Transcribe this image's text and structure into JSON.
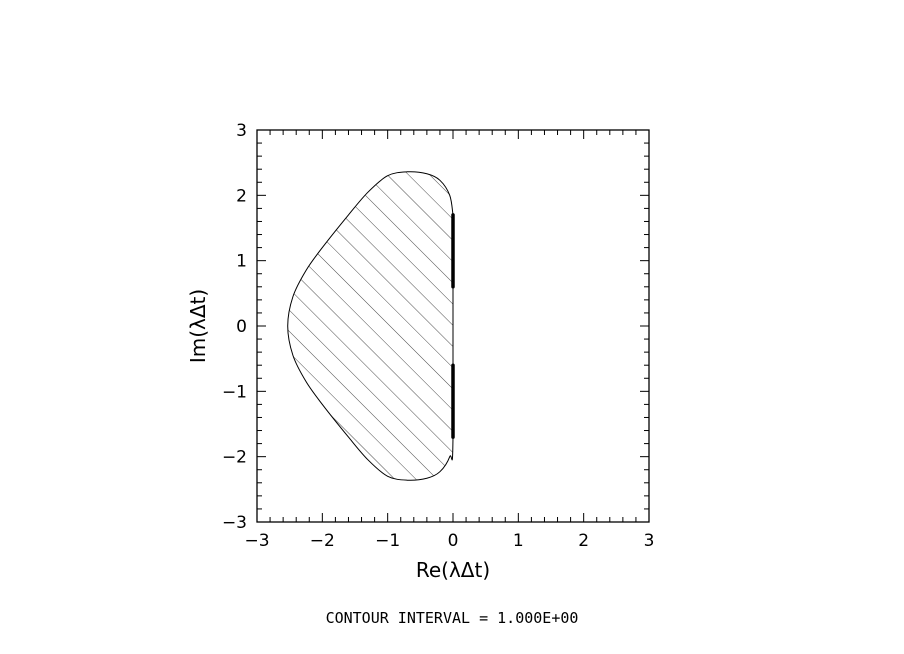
{
  "chart_data": {
    "type": "contour",
    "title": "",
    "xlabel": "Re(λΔt)",
    "ylabel": "Im(λΔt)",
    "xlim": [
      -3,
      3
    ],
    "ylim": [
      -3,
      3
    ],
    "x_ticks": [
      -3,
      -2,
      -1,
      0,
      1,
      2,
      3
    ],
    "y_ticks": [
      -3,
      -2,
      -1,
      0,
      1,
      2,
      3
    ],
    "x_tick_labels": [
      "−3",
      "−2",
      "−1",
      "0",
      "1",
      "2",
      "3"
    ],
    "y_tick_labels": [
      "−3",
      "−2",
      "−1",
      "0",
      "1",
      "2",
      "3"
    ],
    "grid": false,
    "minor_ticks_per_major": 5,
    "stability_region": {
      "fill": "hatched",
      "boundary": [
        [
          0.0,
          1.7
        ],
        [
          -0.05,
          2.0
        ],
        [
          -0.2,
          2.23
        ],
        [
          -0.4,
          2.33
        ],
        [
          -0.7,
          2.36
        ],
        [
          -1.0,
          2.3
        ],
        [
          -1.3,
          2.05
        ],
        [
          -1.6,
          1.7
        ],
        [
          -2.0,
          1.2
        ],
        [
          -2.25,
          0.85
        ],
        [
          -2.45,
          0.45
        ],
        [
          -2.53,
          0.0
        ],
        [
          -2.45,
          -0.45
        ],
        [
          -2.25,
          -0.85
        ],
        [
          -2.0,
          -1.2
        ],
        [
          -1.6,
          -1.7
        ],
        [
          -1.3,
          -2.05
        ],
        [
          -1.0,
          -2.3
        ],
        [
          -0.7,
          -2.36
        ],
        [
          -0.4,
          -2.33
        ],
        [
          -0.2,
          -2.23
        ],
        [
          -0.05,
          -2.0
        ],
        [
          0.0,
          -1.7
        ],
        [
          0.0,
          1.7
        ]
      ]
    },
    "imaginary_axis_segments": [
      {
        "x": 0.0,
        "y_range": [
          0.6,
          1.7
        ]
      },
      {
        "x": 0.0,
        "y_range": [
          -1.7,
          -0.6
        ]
      }
    ],
    "footer": "CONTOUR INTERVAL = 1.000E+00"
  }
}
